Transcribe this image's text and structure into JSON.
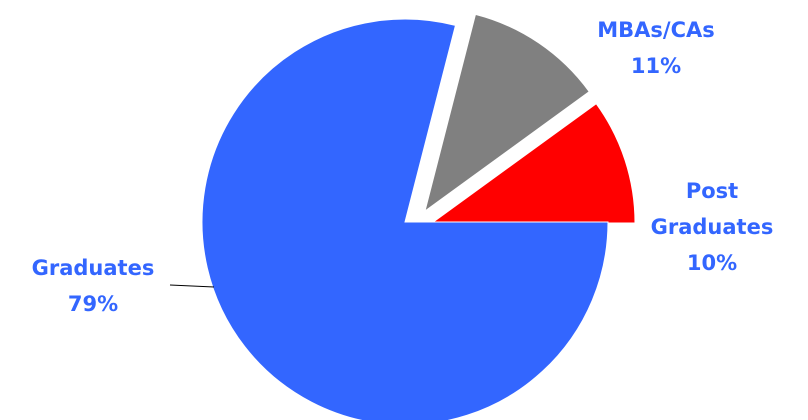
{
  "chart_data": {
    "type": "pie",
    "exploded": true,
    "start_angle_deg": 0,
    "direction": "counterclockwise",
    "slices": [
      {
        "name": "Post Graduates",
        "label_lines": [
          "Post",
          "Graduates"
        ],
        "value": 10,
        "value_label": "10%",
        "color": "#ff0000",
        "label_color": "#3366ff"
      },
      {
        "name": "MBAs/CAs",
        "label_lines": [
          "MBAs/CAs"
        ],
        "value": 11,
        "value_label": "11%",
        "color": "#808080",
        "label_color": "#3366ff"
      },
      {
        "name": "Graduates",
        "label_lines": [
          "Graduates"
        ],
        "value": 79,
        "value_label": "79%",
        "color": "#3366ff",
        "label_color": "#3366ff"
      }
    ]
  }
}
